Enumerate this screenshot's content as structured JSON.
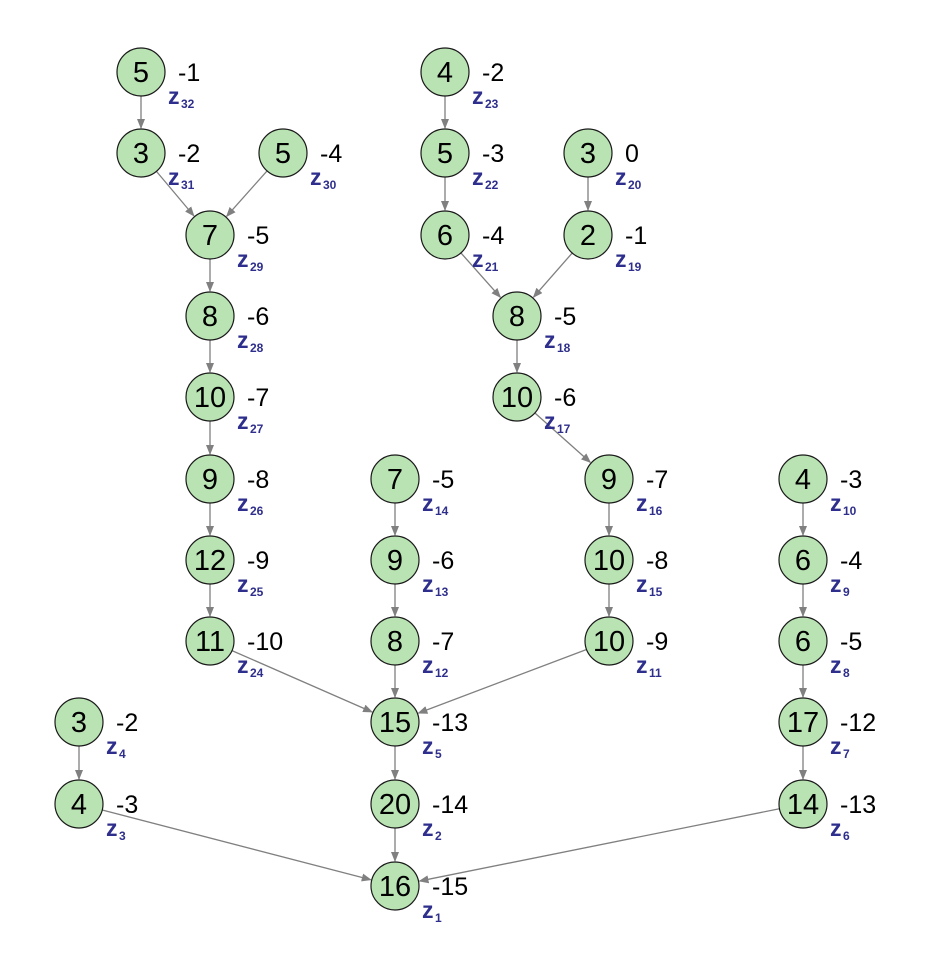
{
  "diagram": {
    "colors": {
      "node_fill": "#b9e3b3",
      "node_stroke": "#1a1a1a",
      "edge": "#808080",
      "label": "#2e2e8c"
    },
    "nodes": [
      {
        "id": "z1",
        "value": "16",
        "weight": "-15",
        "label": "z",
        "index": "1"
      },
      {
        "id": "z2",
        "value": "20",
        "weight": "-14",
        "label": "z",
        "index": "2"
      },
      {
        "id": "z3",
        "value": "4",
        "weight": "-3",
        "label": "z",
        "index": "3"
      },
      {
        "id": "z4",
        "value": "3",
        "weight": "-2",
        "label": "z",
        "index": "4"
      },
      {
        "id": "z5",
        "value": "15",
        "weight": "-13",
        "label": "z",
        "index": "5"
      },
      {
        "id": "z6",
        "value": "14",
        "weight": "-13",
        "label": "z",
        "index": "6"
      },
      {
        "id": "z7",
        "value": "17",
        "weight": "-12",
        "label": "z",
        "index": "7"
      },
      {
        "id": "z8",
        "value": "6",
        "weight": "-5",
        "label": "z",
        "index": "8"
      },
      {
        "id": "z9",
        "value": "6",
        "weight": "-4",
        "label": "z",
        "index": "9"
      },
      {
        "id": "z10",
        "value": "4",
        "weight": "-3",
        "label": "z",
        "index": "10"
      },
      {
        "id": "z11",
        "value": "10",
        "weight": "-9",
        "label": "z",
        "index": "11"
      },
      {
        "id": "z12",
        "value": "8",
        "weight": "-7",
        "label": "z",
        "index": "12"
      },
      {
        "id": "z13",
        "value": "9",
        "weight": "-6",
        "label": "z",
        "index": "13"
      },
      {
        "id": "z14",
        "value": "7",
        "weight": "-5",
        "label": "z",
        "index": "14"
      },
      {
        "id": "z15",
        "value": "10",
        "weight": "-8",
        "label": "z",
        "index": "15"
      },
      {
        "id": "z16",
        "value": "9",
        "weight": "-7",
        "label": "z",
        "index": "16"
      },
      {
        "id": "z17",
        "value": "10",
        "weight": "-6",
        "label": "z",
        "index": "17"
      },
      {
        "id": "z18",
        "value": "8",
        "weight": "-5",
        "label": "z",
        "index": "18"
      },
      {
        "id": "z19",
        "value": "2",
        "weight": "-1",
        "label": "z",
        "index": "19"
      },
      {
        "id": "z20",
        "value": "3",
        "weight": "0",
        "label": "z",
        "index": "20"
      },
      {
        "id": "z21",
        "value": "6",
        "weight": "-4",
        "label": "z",
        "index": "21"
      },
      {
        "id": "z22",
        "value": "5",
        "weight": "-3",
        "label": "z",
        "index": "22"
      },
      {
        "id": "z23",
        "value": "4",
        "weight": "-2",
        "label": "z",
        "index": "23"
      },
      {
        "id": "z24",
        "value": "11",
        "weight": "-10",
        "label": "z",
        "index": "24"
      },
      {
        "id": "z25",
        "value": "12",
        "weight": "-9",
        "label": "z",
        "index": "25"
      },
      {
        "id": "z26",
        "value": "9",
        "weight": "-8",
        "label": "z",
        "index": "26"
      },
      {
        "id": "z27",
        "value": "10",
        "weight": "-7",
        "label": "z",
        "index": "27"
      },
      {
        "id": "z28",
        "value": "8",
        "weight": "-6",
        "label": "z",
        "index": "28"
      },
      {
        "id": "z29",
        "value": "7",
        "weight": "-5",
        "label": "z",
        "index": "29"
      },
      {
        "id": "z30",
        "value": "5",
        "weight": "-4",
        "label": "z",
        "index": "30"
      },
      {
        "id": "z31",
        "value": "3",
        "weight": "-2",
        "label": "z",
        "index": "31"
      },
      {
        "id": "z32",
        "value": "5",
        "weight": "-1",
        "label": "z",
        "index": "32"
      }
    ],
    "edges": [
      {
        "from": "z32",
        "to": "z31"
      },
      {
        "from": "z31",
        "to": "z29"
      },
      {
        "from": "z30",
        "to": "z29"
      },
      {
        "from": "z29",
        "to": "z28"
      },
      {
        "from": "z28",
        "to": "z27"
      },
      {
        "from": "z27",
        "to": "z26"
      },
      {
        "from": "z26",
        "to": "z25"
      },
      {
        "from": "z25",
        "to": "z24"
      },
      {
        "from": "z24",
        "to": "z5"
      },
      {
        "from": "z23",
        "to": "z22"
      },
      {
        "from": "z22",
        "to": "z21"
      },
      {
        "from": "z21",
        "to": "z18"
      },
      {
        "from": "z20",
        "to": "z19"
      },
      {
        "from": "z19",
        "to": "z18"
      },
      {
        "from": "z18",
        "to": "z17"
      },
      {
        "from": "z17",
        "to": "z16"
      },
      {
        "from": "z16",
        "to": "z15"
      },
      {
        "from": "z15",
        "to": "z11"
      },
      {
        "from": "z11",
        "to": "z5"
      },
      {
        "from": "z14",
        "to": "z13"
      },
      {
        "from": "z13",
        "to": "z12"
      },
      {
        "from": "z12",
        "to": "z5"
      },
      {
        "from": "z5",
        "to": "z2"
      },
      {
        "from": "z2",
        "to": "z1"
      },
      {
        "from": "z10",
        "to": "z9"
      },
      {
        "from": "z9",
        "to": "z8"
      },
      {
        "from": "z8",
        "to": "z7"
      },
      {
        "from": "z7",
        "to": "z6"
      },
      {
        "from": "z6",
        "to": "z1"
      },
      {
        "from": "z4",
        "to": "z3"
      },
      {
        "from": "z3",
        "to": "z1"
      }
    ]
  }
}
